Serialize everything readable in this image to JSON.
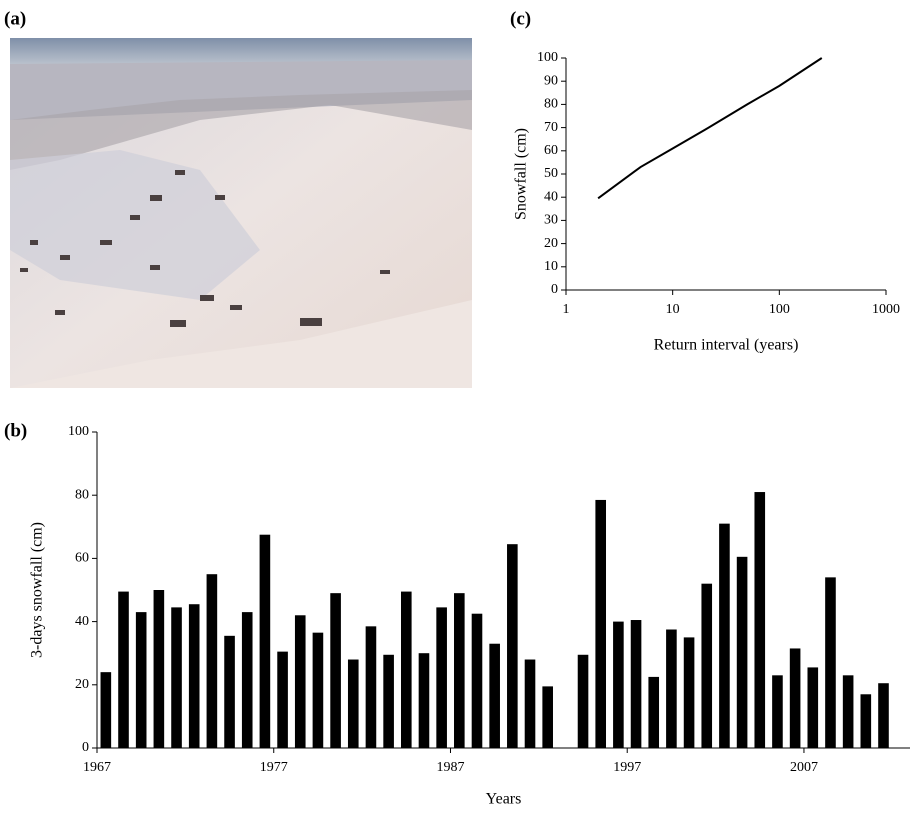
{
  "photo": {
    "panel": "(a)"
  },
  "chart_data": [
    {
      "type": "line",
      "panel": "(c)",
      "y_label": "Snowfall (cm)",
      "x_label": "Return interval (years)",
      "x": [
        2,
        5,
        10,
        20,
        50,
        100,
        250
      ],
      "values": [
        39.5,
        53,
        61,
        69,
        80,
        88,
        100
      ],
      "color": "#000000",
      "xlog": true,
      "xlim": [
        1,
        1000
      ],
      "xticks": [
        1,
        10,
        100,
        1000
      ],
      "ylim": [
        0,
        100
      ],
      "yticks": [
        0,
        10,
        20,
        30,
        40,
        50,
        60,
        70,
        80,
        90,
        100
      ]
    },
    {
      "type": "bar",
      "panel": "(b)",
      "y_label": "3-days snowfall (cm)",
      "x_label": "Years",
      "categories": [
        "1967",
        null,
        null,
        null,
        null,
        null,
        null,
        null,
        null,
        null,
        "1977",
        null,
        null,
        null,
        null,
        null,
        null,
        null,
        null,
        null,
        "1987",
        null,
        null,
        null,
        null,
        null,
        null,
        null,
        null,
        null,
        "1997",
        null,
        null,
        null,
        null,
        null,
        null,
        null,
        null,
        null,
        "2007",
        null,
        null,
        null,
        null,
        null
      ],
      "values": [
        24,
        49.5,
        43,
        50,
        44.5,
        45.5,
        55,
        35.5,
        43,
        67.5,
        30.5,
        42,
        36.5,
        49,
        28,
        38.5,
        29.5,
        49.5,
        30,
        44.5,
        49,
        42.5,
        33,
        64.5,
        28,
        19.5,
        null,
        29.5,
        78.5,
        40,
        40.5,
        22.5,
        37.5,
        35,
        52,
        71,
        60.5,
        81,
        23,
        31.5,
        25.5,
        54,
        23,
        17,
        20.5,
        null
      ],
      "color": "#000000",
      "ylim": [
        0,
        100
      ],
      "yticks": [
        0,
        20,
        40,
        60,
        80,
        100
      ]
    }
  ]
}
